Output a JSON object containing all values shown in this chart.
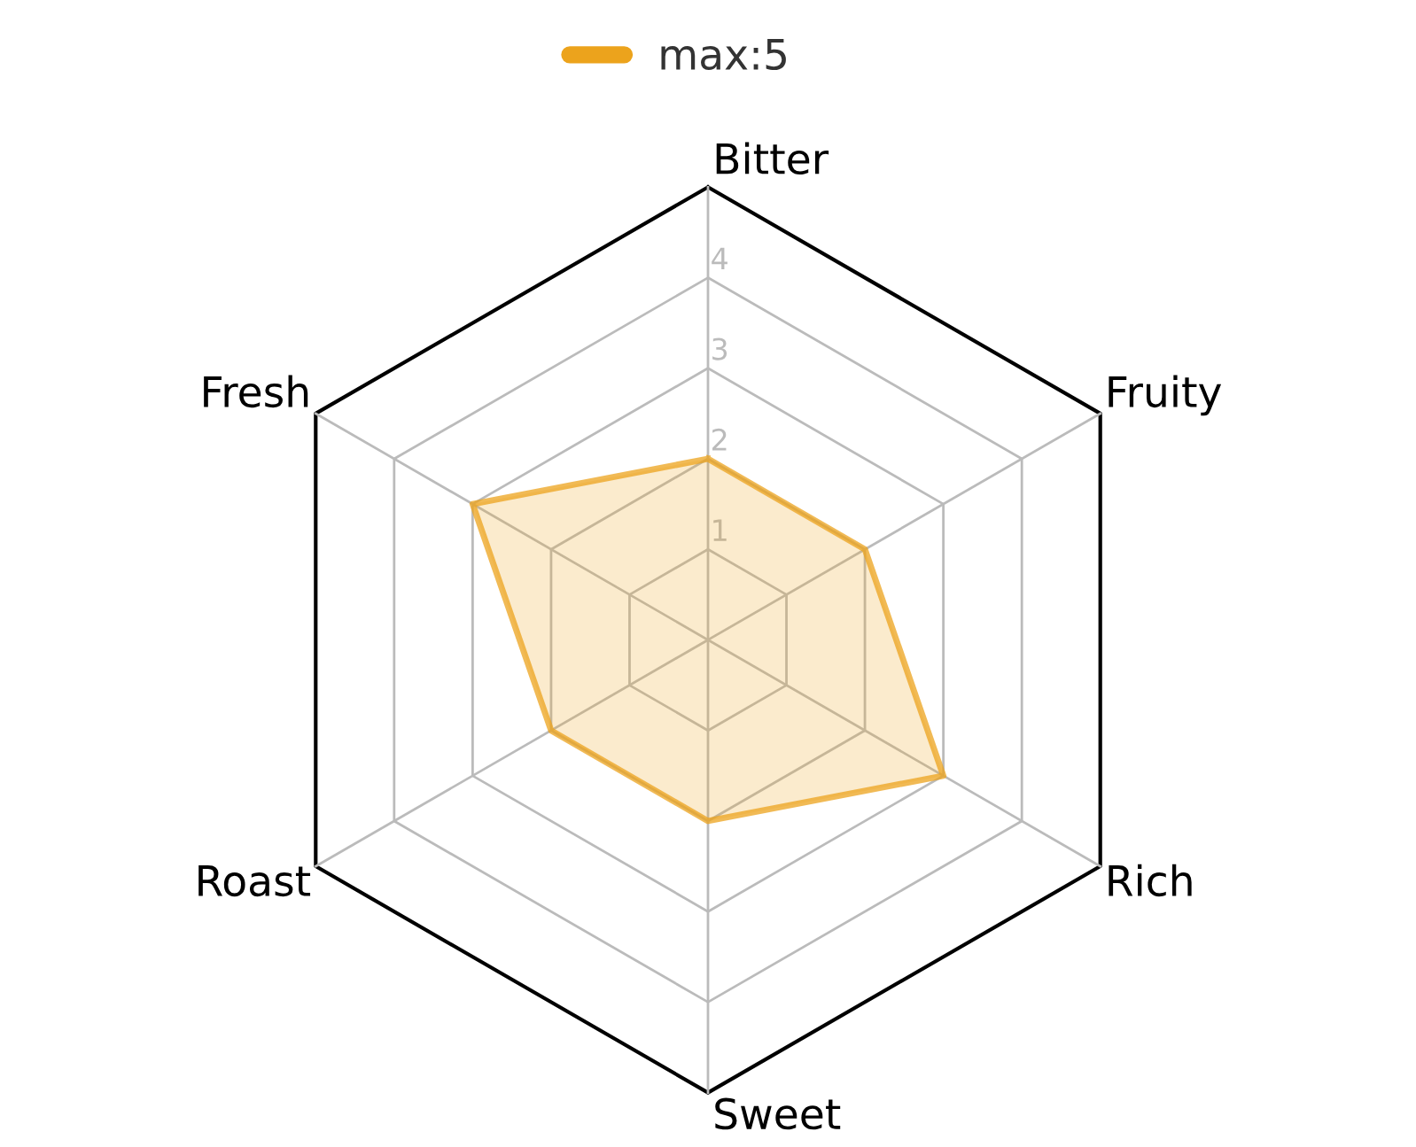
{
  "chart_data": {
    "type": "radar",
    "categories": [
      "Bitter",
      "Fruity",
      "Rich",
      "Sweet",
      "Roast",
      "Fresh"
    ],
    "series": [
      {
        "name": "max:5",
        "color": "#eca31c",
        "values": [
          2,
          2,
          3,
          2,
          2,
          3
        ]
      }
    ],
    "ylim": [
      0,
      5
    ],
    "yticks": [
      1,
      2,
      3,
      4
    ],
    "grid": true,
    "legend": "top",
    "marker": "none"
  }
}
